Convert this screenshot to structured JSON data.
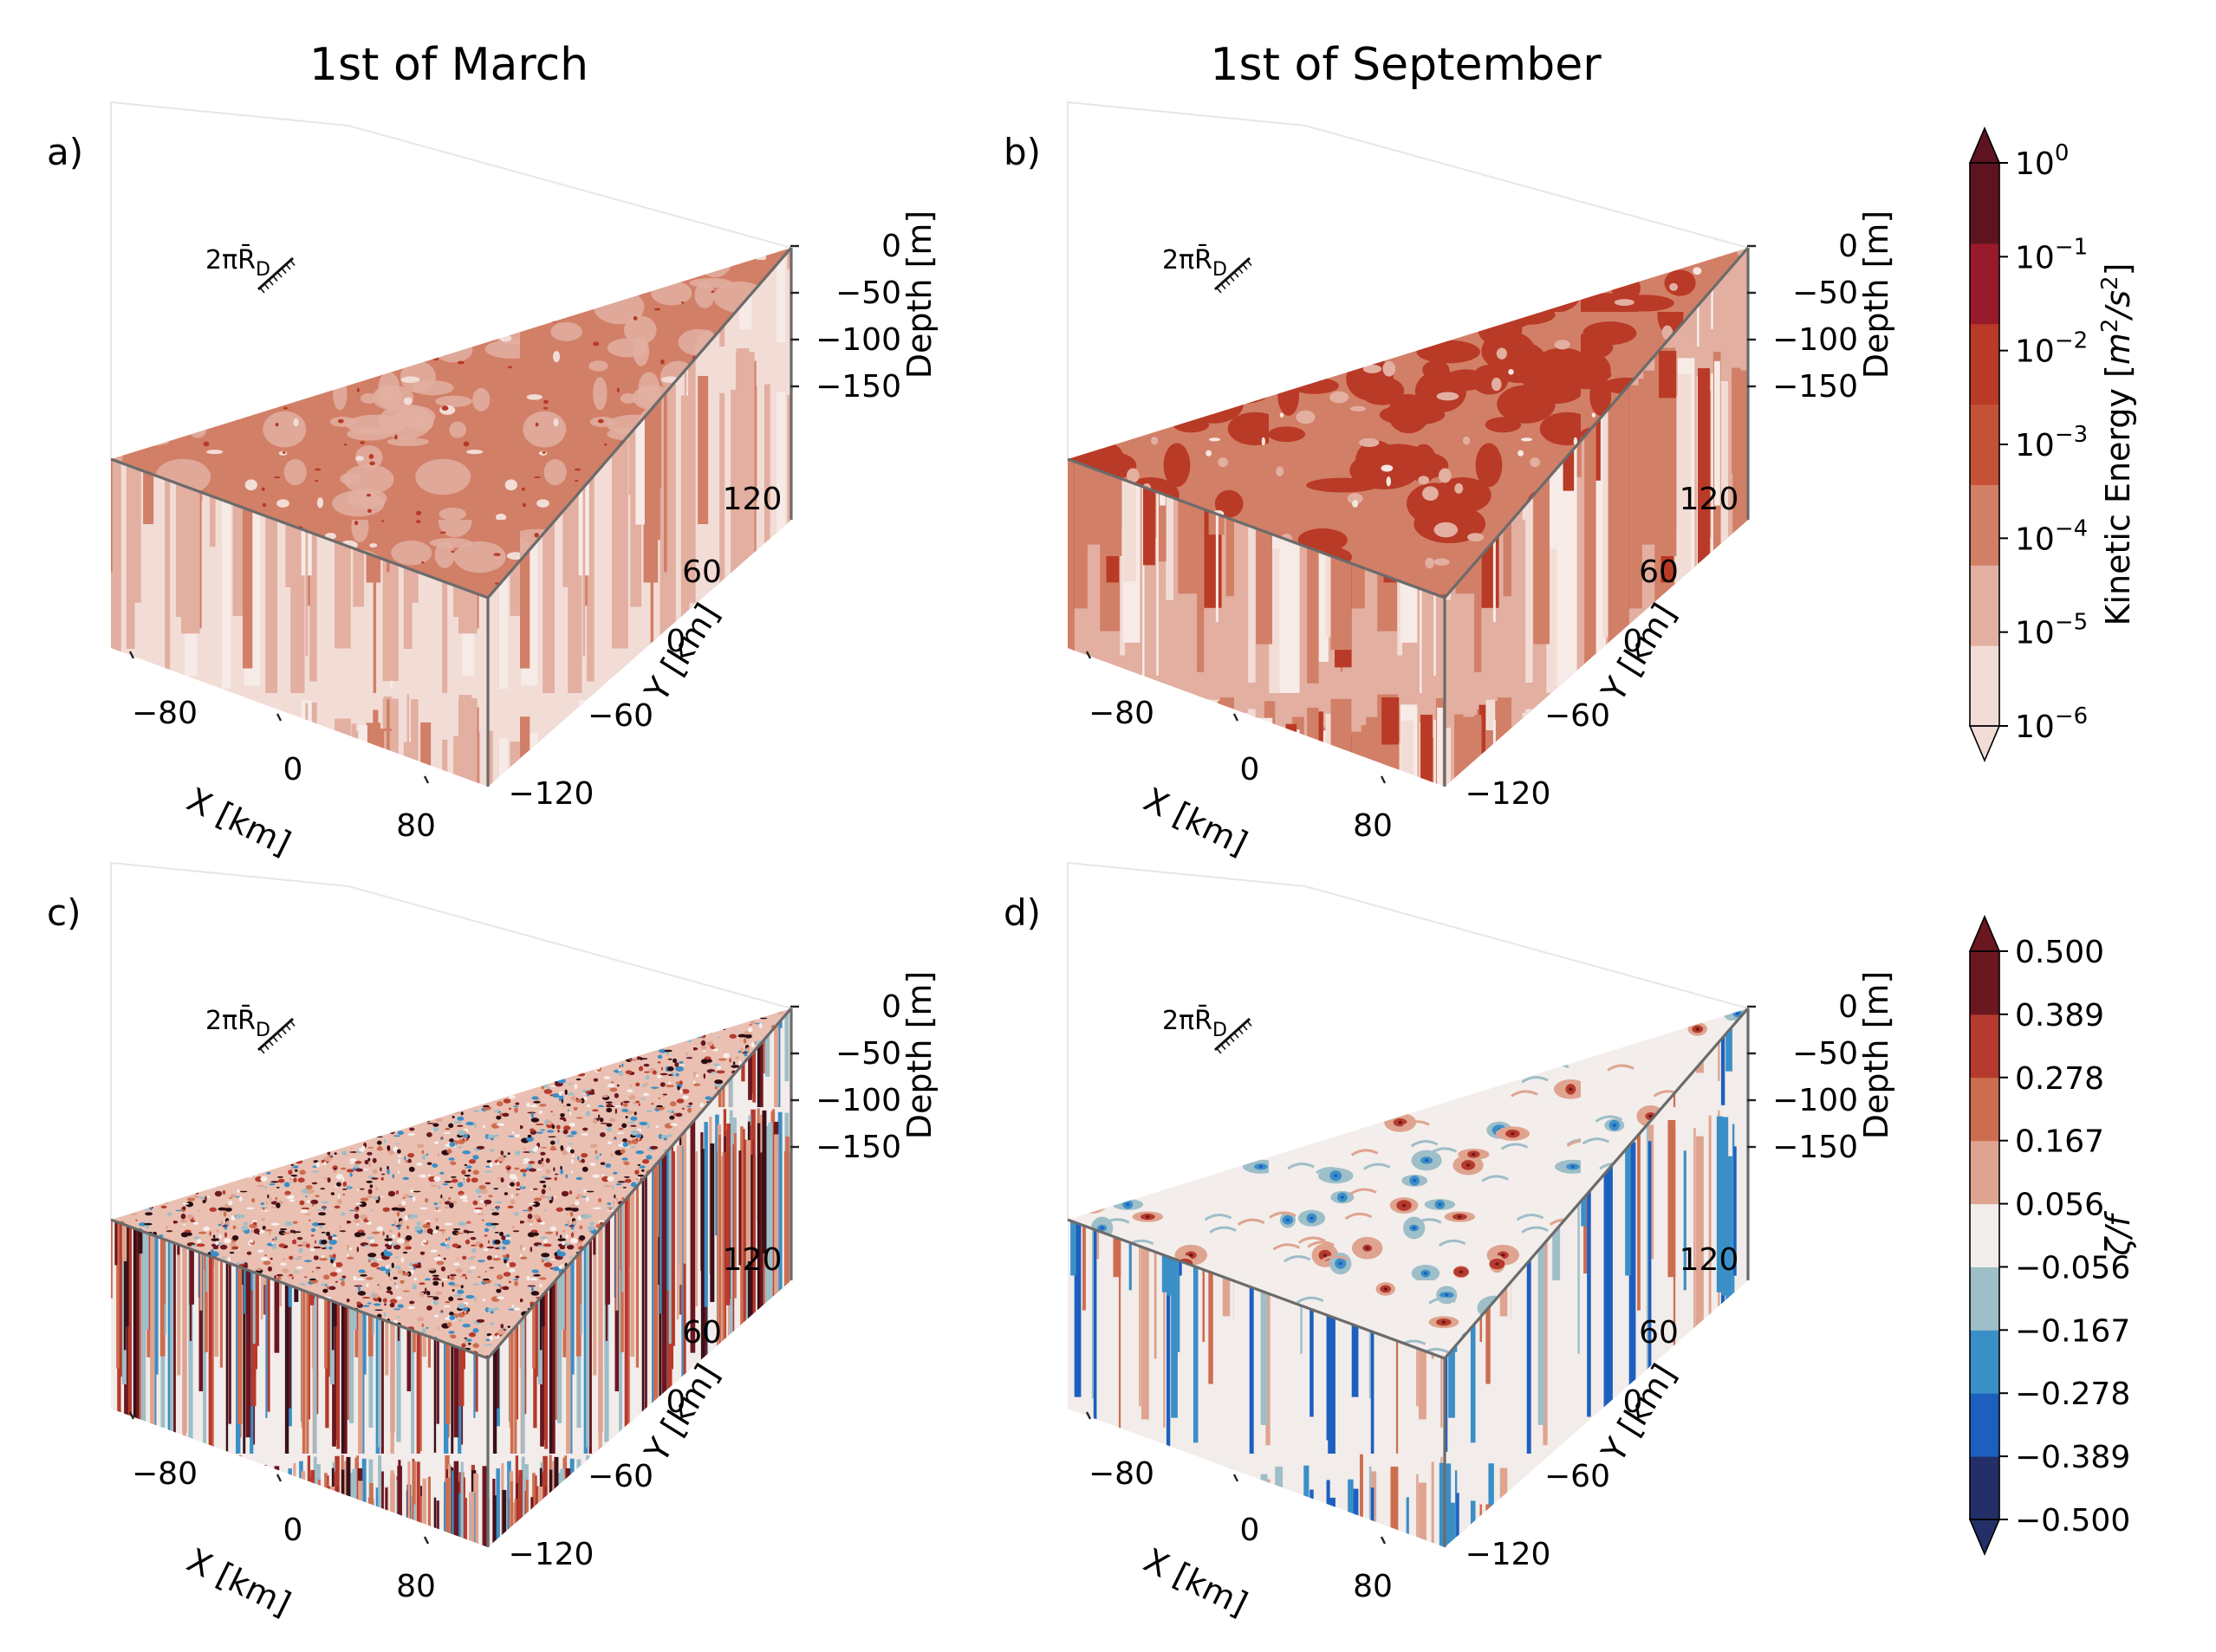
{
  "column_titles": [
    "1st of March",
    "1st of September"
  ],
  "chart_data": [
    {
      "type": "heatmap",
      "panel": "a)",
      "field": "ke",
      "variant": "march",
      "xlabel": "X [km]",
      "ylabel": "Y [km]",
      "zlabel": "Depth [m]",
      "xticks": [
        "−80",
        "0",
        "80"
      ],
      "yticks": [
        "−120",
        "−60",
        "0",
        "60",
        "120"
      ],
      "zticks": [
        "0",
        "−50",
        "−100",
        "−150"
      ],
      "scale_label": "2πR̄",
      "scale_sub": "D"
    },
    {
      "type": "heatmap",
      "panel": "b)",
      "field": "ke",
      "variant": "september",
      "xlabel": "X [km]",
      "ylabel": "Y [km]",
      "zlabel": "Depth [m]",
      "xticks": [
        "−80",
        "0",
        "80"
      ],
      "yticks": [
        "−120",
        "−60",
        "0",
        "60",
        "120"
      ],
      "zticks": [
        "0",
        "−50",
        "−100",
        "−150"
      ],
      "scale_label": "2πR̄",
      "scale_sub": "D"
    },
    {
      "type": "heatmap",
      "panel": "c)",
      "field": "vort",
      "variant": "march",
      "xlabel": "X [km]",
      "ylabel": "Y [km]",
      "zlabel": "Depth [m]",
      "xticks": [
        "−80",
        "0",
        "80"
      ],
      "yticks": [
        "−120",
        "−60",
        "0",
        "60",
        "120"
      ],
      "zticks": [
        "0",
        "−50",
        "−100",
        "−150"
      ],
      "scale_label": "2πR̄",
      "scale_sub": "D"
    },
    {
      "type": "heatmap",
      "panel": "d)",
      "field": "vort",
      "variant": "september",
      "xlabel": "X [km]",
      "ylabel": "Y [km]",
      "zlabel": "Depth [m]",
      "xticks": [
        "−80",
        "0",
        "80"
      ],
      "yticks": [
        "−120",
        "−60",
        "0",
        "60",
        "120"
      ],
      "zticks": [
        "0",
        "−50",
        "−100",
        "−150"
      ],
      "scale_label": "2πR̄",
      "scale_sub": "D"
    }
  ],
  "colorbars": {
    "ke": {
      "label": "Kinetic Energy [m²/s²]",
      "ticks": [
        {
          "base": "10",
          "exp": "0"
        },
        {
          "base": "10",
          "exp": "−1"
        },
        {
          "base": "10",
          "exp": "−2"
        },
        {
          "base": "10",
          "exp": "−3"
        },
        {
          "base": "10",
          "exp": "−4"
        },
        {
          "base": "10",
          "exp": "−5"
        },
        {
          "base": "10",
          "exp": "−6"
        }
      ],
      "colors_bottom_to_top": [
        "#f2dcd6",
        "#e2afa1",
        "#d27f67",
        "#c55237",
        "#b93a26",
        "#991a2a",
        "#5e1420"
      ],
      "extend": "both"
    },
    "vort": {
      "label": "ζ/f",
      "ticks": [
        "0.500",
        "0.389",
        "0.278",
        "0.167",
        "0.056",
        "−0.056",
        "−0.167",
        "−0.278",
        "−0.389",
        "−0.500"
      ],
      "colors_bottom_to_top": [
        "#232f66",
        "#1d5fbf",
        "#3b8fc7",
        "#9ebec8",
        "#f2ecea",
        "#dfa48f",
        "#cd6d4f",
        "#b63a2d",
        "#6b1720"
      ],
      "extend": "both"
    }
  }
}
